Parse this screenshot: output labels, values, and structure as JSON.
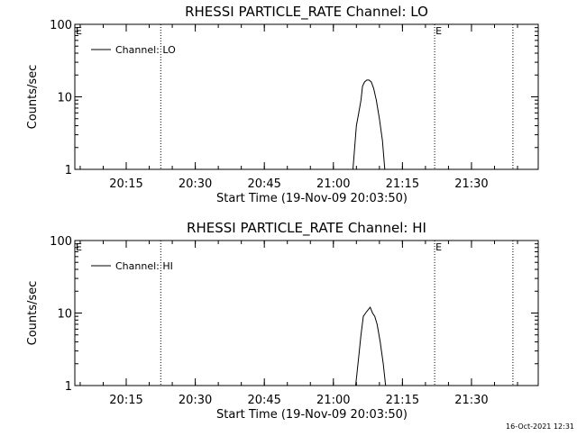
{
  "footer": {
    "timestamp": "16-Oct-2021 12:31"
  },
  "chart_data": [
    {
      "type": "line",
      "title": "RHESSI PARTICLE_RATE Channel: LO",
      "xlabel": "Start Time (19-Nov-09 20:03:50)",
      "ylabel": "Counts/sec",
      "yscale": "log",
      "ylim": [
        1,
        100
      ],
      "y_ticks": [
        1,
        10,
        100
      ],
      "y_tick_labels": [
        "1",
        "10",
        "100"
      ],
      "xlim": [
        "20:03:50",
        "21:44:30"
      ],
      "x_tick_labels": [
        "20:15",
        "20:30",
        "20:45",
        "21:00",
        "21:15",
        "21:30"
      ],
      "x_ticks": [
        "20:15",
        "20:30",
        "20:45",
        "21:00",
        "21:15",
        "21:30"
      ],
      "legend_position": "top-left",
      "series": [
        {
          "name": "Channel: LO",
          "x": [
            "21:04:15",
            "21:05:00",
            "21:05:30",
            "21:06:00",
            "21:06:20",
            "21:06:45",
            "21:07:15",
            "21:07:45",
            "21:08:15",
            "21:08:45",
            "21:09:20",
            "21:10:00",
            "21:10:40",
            "21:11:10"
          ],
          "y": [
            1,
            4,
            6,
            9,
            14,
            16,
            17,
            17,
            16,
            13,
            9,
            5,
            2.5,
            1
          ]
        }
      ],
      "markers": [
        {
          "time": "20:22:30",
          "label": ""
        },
        {
          "time": "21:22:00",
          "label": "E"
        },
        {
          "time": "21:39:00",
          "label": ""
        }
      ],
      "left_marker_label": "E",
      "grid": false
    },
    {
      "type": "line",
      "title": "RHESSI PARTICLE_RATE Channel: HI",
      "xlabel": "Start Time (19-Nov-09 20:03:50)",
      "ylabel": "Counts/sec",
      "yscale": "log",
      "ylim": [
        1,
        100
      ],
      "y_ticks": [
        1,
        10,
        100
      ],
      "y_tick_labels": [
        "1",
        "10",
        "100"
      ],
      "xlim": [
        "20:03:50",
        "21:44:30"
      ],
      "x_tick_labels": [
        "20:15",
        "20:30",
        "20:45",
        "21:00",
        "21:15",
        "21:30"
      ],
      "x_ticks": [
        "20:15",
        "20:30",
        "20:45",
        "21:00",
        "21:15",
        "21:30"
      ],
      "legend_position": "top-left",
      "series": [
        {
          "name": "Channel: HI",
          "x": [
            "21:04:50",
            "21:05:30",
            "21:06:00",
            "21:06:30",
            "21:07:00",
            "21:07:30",
            "21:08:00",
            "21:08:30",
            "21:09:00",
            "21:09:30",
            "21:10:10",
            "21:10:50",
            "21:11:20"
          ],
          "y": [
            1,
            2.5,
            5,
            9,
            10,
            11,
            12,
            10,
            9,
            7,
            4,
            2,
            1
          ]
        }
      ],
      "markers": [
        {
          "time": "20:22:30",
          "label": ""
        },
        {
          "time": "21:22:00",
          "label": "E"
        },
        {
          "time": "21:39:00",
          "label": ""
        }
      ],
      "left_marker_label": "E",
      "grid": false
    }
  ]
}
